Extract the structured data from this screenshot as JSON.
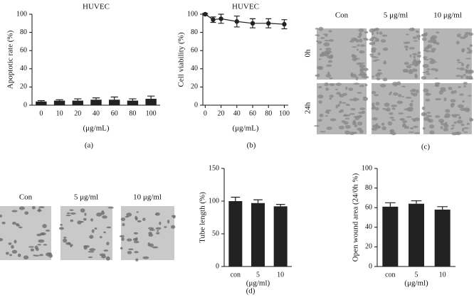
{
  "chart_data": [
    {
      "type": "bar",
      "title": "HUVEC",
      "categories": [
        "0",
        "10",
        "20",
        "40",
        "60",
        "80",
        "100"
      ],
      "values": [
        4,
        5,
        5,
        6,
        6,
        5,
        7
      ],
      "errors": [
        1,
        1,
        2,
        2,
        3,
        2,
        3
      ],
      "color": "#222222",
      "ylim": [
        0,
        100
      ],
      "yticks": [
        0,
        20,
        40,
        60,
        80,
        100
      ],
      "y_label": "Apoptotic rate (%)",
      "x_label": "(μg/mL)"
    },
    {
      "type": "line",
      "title": "HUVEC",
      "x": [
        0,
        10,
        20,
        40,
        60,
        80,
        100
      ],
      "values": [
        100,
        94,
        95,
        92,
        90,
        90,
        89
      ],
      "errors": [
        1,
        3,
        5,
        6,
        5,
        5,
        5
      ],
      "color": "#222222",
      "xlim": [
        -3,
        105
      ],
      "xticks": [
        0,
        20,
        40,
        60,
        80,
        100
      ],
      "ylim": [
        0,
        100
      ],
      "yticks": [
        0,
        20,
        40,
        60,
        80,
        100
      ],
      "y_label": "Cell viability (%)",
      "x_label": "(μg/mL)"
    },
    {
      "type": "bar",
      "categories": [
        "con",
        "5",
        "10"
      ],
      "values": [
        100,
        97,
        92
      ],
      "errors": [
        6,
        5,
        3
      ],
      "color": "#222222",
      "ylim": [
        0,
        150
      ],
      "yticks": [
        0,
        50,
        100,
        150
      ],
      "y_label": "Tube length (%)",
      "x_label": "(μg/ml)"
    },
    {
      "type": "bar",
      "categories": [
        "con",
        "5",
        "10"
      ],
      "values": [
        61,
        64,
        58
      ],
      "errors": [
        4,
        3,
        3
      ],
      "color": "#222222",
      "ylim": [
        0,
        100
      ],
      "yticks": [
        0,
        20,
        40,
        60,
        80,
        100
      ],
      "y_label": "Open wound area (24/0h %)",
      "x_label": "(μg/ml)"
    }
  ],
  "panel_labels": [
    "(a)",
    "(b)",
    "(c)",
    "(d)"
  ],
  "wound_healing": {
    "columns": [
      "Con",
      "5 μg/ml",
      "10 μg/ml"
    ],
    "rows": [
      "0h",
      "24h"
    ]
  },
  "tube_formation": {
    "columns": [
      "Con",
      "5 μg/ml",
      "10 μg/ml"
    ]
  }
}
